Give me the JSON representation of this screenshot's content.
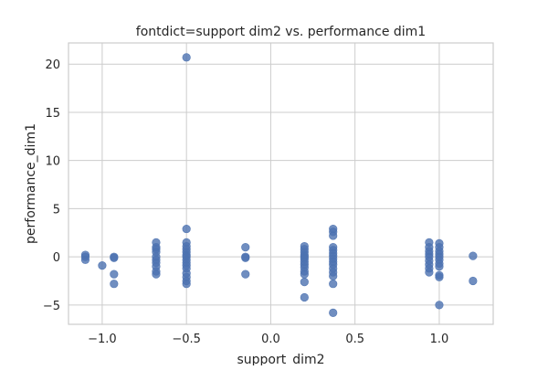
{
  "chart_data": {
    "type": "scatter",
    "title": "fontdict=support dim2 vs. performance dim1",
    "xlabel": "support_dim2",
    "ylabel": "performance_dim1",
    "xlim": [
      -1.2,
      1.32
    ],
    "ylim": [
      -7.0,
      22.2
    ],
    "xticks": [
      -1.0,
      -0.5,
      0.0,
      0.5,
      1.0
    ],
    "xtick_labels": [
      "−1.0",
      "−0.5",
      "0.0",
      "0.5",
      "1.0"
    ],
    "yticks": [
      -5,
      0,
      5,
      10,
      15,
      20
    ],
    "ytick_labels": [
      "−5",
      "0",
      "5",
      "10",
      "15",
      "20"
    ],
    "grid": true,
    "legend": "none",
    "color": "#4c72b0",
    "points": [
      [
        -1.1,
        0.2
      ],
      [
        -1.1,
        0.0
      ],
      [
        -1.1,
        -0.3
      ],
      [
        -1.0,
        -0.9
      ],
      [
        -0.93,
        0.0
      ],
      [
        -0.93,
        -0.1
      ],
      [
        -0.93,
        -1.8
      ],
      [
        -0.93,
        -2.8
      ],
      [
        -0.68,
        1.5
      ],
      [
        -0.68,
        1.0
      ],
      [
        -0.68,
        0.8
      ],
      [
        -0.68,
        0.5
      ],
      [
        -0.68,
        0.0
      ],
      [
        -0.68,
        -0.3
      ],
      [
        -0.68,
        -0.6
      ],
      [
        -0.68,
        -1.0
      ],
      [
        -0.68,
        -1.5
      ],
      [
        -0.68,
        -1.8
      ],
      [
        -0.5,
        20.7
      ],
      [
        -0.5,
        2.9
      ],
      [
        -0.5,
        1.5
      ],
      [
        -0.5,
        1.1
      ],
      [
        -0.5,
        0.8
      ],
      [
        -0.5,
        0.5
      ],
      [
        -0.5,
        0.2
      ],
      [
        -0.5,
        0.0
      ],
      [
        -0.5,
        -0.3
      ],
      [
        -0.5,
        -0.6
      ],
      [
        -0.5,
        -0.9
      ],
      [
        -0.5,
        -1.2
      ],
      [
        -0.5,
        -1.7
      ],
      [
        -0.5,
        -2.1
      ],
      [
        -0.5,
        -2.5
      ],
      [
        -0.5,
        -2.8
      ],
      [
        -0.15,
        1.0
      ],
      [
        -0.15,
        0.0
      ],
      [
        -0.15,
        -0.1
      ],
      [
        -0.15,
        -1.8
      ],
      [
        0.2,
        1.1
      ],
      [
        0.2,
        0.8
      ],
      [
        0.2,
        0.5
      ],
      [
        0.2,
        0.2
      ],
      [
        0.2,
        0.0
      ],
      [
        0.2,
        -0.2
      ],
      [
        0.2,
        -0.5
      ],
      [
        0.2,
        -0.8
      ],
      [
        0.2,
        -1.1
      ],
      [
        0.2,
        -1.5
      ],
      [
        0.2,
        -1.8
      ],
      [
        0.2,
        -2.6
      ],
      [
        0.2,
        -4.2
      ],
      [
        0.37,
        2.9
      ],
      [
        0.37,
        2.6
      ],
      [
        0.37,
        2.2
      ],
      [
        0.37,
        1.0
      ],
      [
        0.37,
        0.7
      ],
      [
        0.37,
        0.4
      ],
      [
        0.37,
        0.1
      ],
      [
        0.37,
        -0.2
      ],
      [
        0.37,
        -0.5
      ],
      [
        0.37,
        -0.8
      ],
      [
        0.37,
        -1.2
      ],
      [
        0.37,
        -1.6
      ],
      [
        0.37,
        -2.0
      ],
      [
        0.37,
        -2.8
      ],
      [
        0.37,
        -5.8
      ],
      [
        0.94,
        1.5
      ],
      [
        0.94,
        1.0
      ],
      [
        0.94,
        0.6
      ],
      [
        0.94,
        0.3
      ],
      [
        0.94,
        0.0
      ],
      [
        0.94,
        -0.4
      ],
      [
        0.94,
        -0.8
      ],
      [
        0.94,
        -1.2
      ],
      [
        0.94,
        -1.6
      ],
      [
        1.0,
        1.4
      ],
      [
        1.0,
        1.0
      ],
      [
        1.0,
        0.6
      ],
      [
        1.0,
        0.3
      ],
      [
        1.0,
        0.0
      ],
      [
        1.0,
        -0.3
      ],
      [
        1.0,
        -0.7
      ],
      [
        1.0,
        -1.0
      ],
      [
        1.0,
        -1.9
      ],
      [
        1.0,
        -2.1
      ],
      [
        1.0,
        -5.0
      ],
      [
        1.2,
        0.1
      ],
      [
        1.2,
        -2.5
      ]
    ]
  }
}
